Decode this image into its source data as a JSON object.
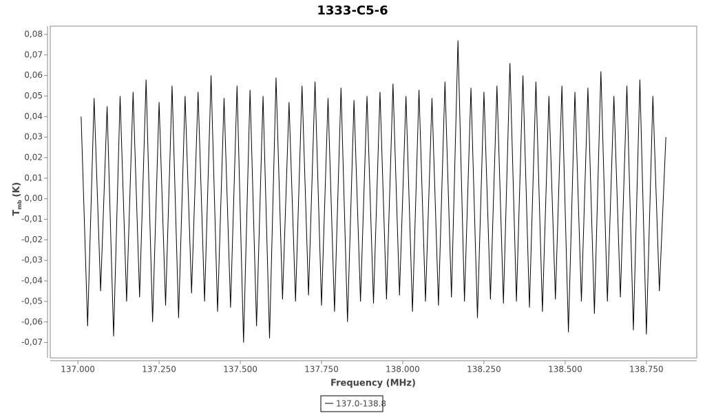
{
  "chart_data": {
    "type": "line",
    "title": "1333-C5-6",
    "xlabel": "Frequency (MHz)",
    "ylabel": "T",
    "ylabel_sub": "mb",
    "ylabel_unit": "(K)",
    "xlim": [
      136.915,
      138.905
    ],
    "ylim": [
      -0.0775,
      0.084
    ],
    "xticks": [
      {
        "value": 137,
        "label": "137.000"
      },
      {
        "value": 137.25,
        "label": "137.250"
      },
      {
        "value": 137.5,
        "label": "137.500"
      },
      {
        "value": 137.75,
        "label": "137.750"
      },
      {
        "value": 138,
        "label": "138.000"
      },
      {
        "value": 138.25,
        "label": "138.250"
      },
      {
        "value": 138.5,
        "label": "138.500"
      },
      {
        "value": 138.75,
        "label": "138.750"
      }
    ],
    "yticks": [
      {
        "value": -0.07,
        "label": "-0,07"
      },
      {
        "value": -0.06,
        "label": "-0,06"
      },
      {
        "value": -0.05,
        "label": "-0,05"
      },
      {
        "value": -0.04,
        "label": "-0,04"
      },
      {
        "value": -0.03,
        "label": "-0,03"
      },
      {
        "value": -0.02,
        "label": "-0,02"
      },
      {
        "value": -0.01,
        "label": "-0,01"
      },
      {
        "value": 0,
        "label": "0,00"
      },
      {
        "value": 0.01,
        "label": "0,01"
      },
      {
        "value": 0.02,
        "label": "0,02"
      },
      {
        "value": 0.03,
        "label": "0,03"
      },
      {
        "value": 0.04,
        "label": "0,04"
      },
      {
        "value": 0.05,
        "label": "0,05"
      },
      {
        "value": 0.06,
        "label": "0,06"
      },
      {
        "value": 0.07,
        "label": "0,07"
      },
      {
        "value": 0.08,
        "label": "0,08"
      }
    ],
    "x": [
      137.01,
      137.03,
      137.05,
      137.07,
      137.09,
      137.11,
      137.13,
      137.15,
      137.17,
      137.19,
      137.21,
      137.23,
      137.25,
      137.27,
      137.29,
      137.31,
      137.33,
      137.35,
      137.37,
      137.39,
      137.41,
      137.43,
      137.45,
      137.47,
      137.49,
      137.51,
      137.53,
      137.55,
      137.57,
      137.59,
      137.61,
      137.63,
      137.65,
      137.67,
      137.69,
      137.71,
      137.73,
      137.75,
      137.77,
      137.79,
      137.81,
      137.83,
      137.85,
      137.87,
      137.89,
      137.91,
      137.93,
      137.95,
      137.97,
      137.99,
      138.01,
      138.03,
      138.05,
      138.07,
      138.09,
      138.11,
      138.13,
      138.15,
      138.17,
      138.19,
      138.21,
      138.23,
      138.25,
      138.27,
      138.29,
      138.31,
      138.33,
      138.35,
      138.37,
      138.39,
      138.41,
      138.43,
      138.45,
      138.47,
      138.49,
      138.51,
      138.53,
      138.55,
      138.57,
      138.59,
      138.61,
      138.63,
      138.65,
      138.67,
      138.69,
      138.71,
      138.73,
      138.75,
      138.77,
      138.79,
      138.81
    ],
    "series": [
      {
        "name": "137.0-138.8",
        "color": "#000000",
        "values": [
          0.04,
          -0.062,
          0.049,
          -0.045,
          0.045,
          -0.067,
          0.05,
          -0.05,
          0.052,
          -0.048,
          0.058,
          -0.06,
          0.047,
          -0.052,
          0.055,
          -0.058,
          0.05,
          -0.046,
          0.052,
          -0.05,
          0.06,
          -0.055,
          0.049,
          -0.053,
          0.055,
          -0.07,
          0.053,
          -0.062,
          0.05,
          -0.068,
          0.059,
          -0.049,
          0.047,
          -0.05,
          0.055,
          -0.047,
          0.057,
          -0.052,
          0.049,
          -0.055,
          0.054,
          -0.06,
          0.048,
          -0.05,
          0.05,
          -0.051,
          0.052,
          -0.049,
          0.056,
          -0.047,
          0.05,
          -0.055,
          0.053,
          -0.05,
          0.049,
          -0.052,
          0.057,
          -0.048,
          0.077,
          -0.05,
          0.054,
          -0.058,
          0.052,
          -0.049,
          0.055,
          -0.051,
          0.066,
          -0.05,
          0.06,
          -0.053,
          0.057,
          -0.055,
          0.05,
          -0.049,
          0.055,
          -0.065,
          0.052,
          -0.05,
          0.054,
          -0.056,
          0.062,
          -0.05,
          0.05,
          -0.048,
          0.055,
          -0.064,
          0.058,
          -0.066,
          0.05,
          -0.045,
          0.03
        ]
      }
    ]
  }
}
